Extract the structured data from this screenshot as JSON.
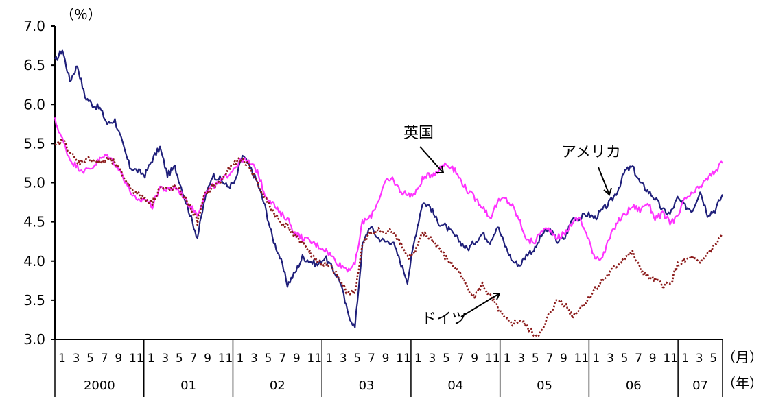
{
  "chart_data": {
    "type": "line",
    "y_unit": "（％）",
    "x_month_unit": "（月）",
    "x_year_unit": "（年）",
    "ylim": [
      3.0,
      7.0
    ],
    "y_ticks": [
      "3.0",
      "3.5",
      "4.0",
      "4.5",
      "5.0",
      "5.5",
      "6.0",
      "6.5",
      "7.0"
    ],
    "y_tick_values": [
      3.0,
      3.5,
      4.0,
      4.5,
      5.0,
      5.5,
      6.0,
      6.5,
      7.0
    ],
    "month_labels": [
      "1",
      "3",
      "5",
      "7",
      "9",
      "11"
    ],
    "last_month_labels": [
      "1",
      "3",
      "5"
    ],
    "years": [
      "2000",
      "01",
      "02",
      "03",
      "04",
      "05",
      "06",
      "07"
    ],
    "x_range_months": [
      0,
      89
    ],
    "grid": false,
    "colors": {
      "usa": "#1f1f7a",
      "uk": "#ff33ff",
      "germany": "#8b1a1a",
      "axis": "#000000"
    },
    "annotations": {
      "uk": "英国",
      "usa": "アメリカ",
      "germany": "ドイツ"
    },
    "series": [
      {
        "name": "アメリカ",
        "key": "usa",
        "style": "solid",
        "x": [
          0,
          1,
          2,
          3,
          4,
          5,
          6,
          7,
          8,
          9,
          10,
          11,
          12,
          13,
          14,
          15,
          16,
          17,
          18,
          19,
          20,
          21,
          22,
          23,
          24,
          25,
          26,
          27,
          28,
          29,
          30,
          31,
          32,
          33,
          34,
          35,
          36,
          37,
          38,
          39,
          40,
          41,
          42,
          43,
          44,
          45,
          46,
          47,
          48,
          49,
          50,
          51,
          52,
          53,
          54,
          55,
          56,
          57,
          58,
          59,
          60,
          61,
          62,
          63,
          64,
          65,
          66,
          67,
          68,
          69,
          70,
          71,
          72,
          73,
          74,
          75,
          76,
          77,
          78,
          79,
          80,
          81,
          82,
          83,
          84,
          85,
          86,
          87,
          88,
          89
        ],
        "y": [
          6.55,
          6.7,
          6.3,
          6.5,
          6.1,
          6.0,
          5.95,
          5.75,
          5.8,
          5.5,
          5.2,
          5.15,
          5.1,
          5.3,
          5.45,
          5.1,
          5.2,
          4.9,
          4.6,
          4.3,
          4.8,
          5.1,
          5.05,
          4.95,
          5.0,
          5.35,
          5.2,
          5.0,
          4.7,
          4.3,
          4.05,
          3.7,
          3.85,
          4.05,
          4.0,
          3.95,
          4.05,
          3.9,
          3.75,
          3.35,
          3.15,
          4.2,
          4.45,
          4.3,
          4.25,
          4.25,
          4.0,
          3.75,
          4.3,
          4.75,
          4.7,
          4.5,
          4.45,
          4.35,
          4.25,
          4.15,
          4.25,
          4.35,
          4.25,
          4.45,
          4.2,
          4.0,
          3.95,
          4.1,
          4.15,
          4.35,
          4.4,
          4.25,
          4.3,
          4.55,
          4.55,
          4.6,
          4.55,
          4.65,
          4.75,
          4.9,
          5.15,
          5.2,
          5.0,
          4.9,
          4.8,
          4.65,
          4.6,
          4.8,
          4.7,
          4.65,
          4.9,
          4.6,
          4.65,
          4.85
        ]
      },
      {
        "name": "英国",
        "key": "uk",
        "style": "solid",
        "x": [
          0,
          1,
          2,
          3,
          4,
          5,
          6,
          7,
          8,
          9,
          10,
          11,
          12,
          13,
          14,
          15,
          16,
          17,
          18,
          19,
          20,
          21,
          22,
          23,
          24,
          25,
          26,
          27,
          28,
          29,
          30,
          31,
          32,
          33,
          34,
          35,
          36,
          37,
          38,
          39,
          40,
          41,
          42,
          43,
          44,
          45,
          46,
          47,
          48,
          49,
          50,
          51,
          52,
          53,
          54,
          55,
          56,
          57,
          58,
          59,
          60,
          61,
          62,
          63,
          64,
          65,
          66,
          67,
          68,
          69,
          70,
          71,
          72,
          73,
          74,
          75,
          76,
          77,
          78,
          79,
          80,
          81,
          82,
          83,
          84,
          85,
          86,
          87,
          88,
          89
        ],
        "y": [
          5.8,
          5.55,
          5.3,
          5.2,
          5.15,
          5.2,
          5.3,
          5.35,
          5.25,
          5.1,
          4.9,
          4.75,
          4.8,
          4.7,
          4.95,
          4.9,
          4.95,
          4.85,
          4.7,
          4.6,
          4.85,
          4.95,
          5.0,
          5.1,
          5.2,
          5.3,
          5.25,
          5.15,
          4.85,
          4.75,
          4.6,
          4.55,
          4.35,
          4.3,
          4.25,
          4.2,
          4.15,
          4.05,
          3.95,
          3.9,
          3.95,
          4.5,
          4.55,
          4.75,
          5.0,
          5.05,
          4.9,
          4.85,
          4.85,
          5.05,
          5.1,
          5.15,
          5.25,
          5.2,
          5.05,
          4.9,
          4.8,
          4.7,
          4.55,
          4.75,
          4.8,
          4.7,
          4.5,
          4.25,
          4.25,
          4.4,
          4.4,
          4.3,
          4.35,
          4.5,
          4.55,
          4.3,
          4.05,
          4.05,
          4.3,
          4.5,
          4.6,
          4.7,
          4.65,
          4.75,
          4.55,
          4.6,
          4.5,
          4.55,
          4.8,
          4.85,
          4.95,
          5.05,
          5.15,
          5.25
        ]
      },
      {
        "name": "ドイツ",
        "key": "germany",
        "style": "dotted",
        "x": [
          0,
          1,
          2,
          3,
          4,
          5,
          6,
          7,
          8,
          9,
          10,
          11,
          12,
          13,
          14,
          15,
          16,
          17,
          18,
          19,
          20,
          21,
          22,
          23,
          24,
          25,
          26,
          27,
          28,
          29,
          30,
          31,
          32,
          33,
          34,
          35,
          36,
          37,
          38,
          39,
          40,
          41,
          42,
          43,
          44,
          45,
          46,
          47,
          48,
          49,
          50,
          51,
          52,
          53,
          54,
          55,
          56,
          57,
          58,
          59,
          60,
          61,
          62,
          63,
          64,
          65,
          66,
          67,
          68,
          69,
          70,
          71,
          72,
          73,
          74,
          75,
          76,
          77,
          78,
          79,
          80,
          81,
          82,
          83,
          84,
          85,
          86,
          87,
          88,
          89
        ],
        "y": [
          5.45,
          5.55,
          5.4,
          5.25,
          5.3,
          5.3,
          5.25,
          5.3,
          5.25,
          5.1,
          4.95,
          4.85,
          4.8,
          4.75,
          4.95,
          4.9,
          4.95,
          4.85,
          4.7,
          4.5,
          4.85,
          4.95,
          5.0,
          5.15,
          5.25,
          5.3,
          5.2,
          5.0,
          4.8,
          4.65,
          4.5,
          4.45,
          4.3,
          4.25,
          4.1,
          4.0,
          3.95,
          3.9,
          3.75,
          3.6,
          3.6,
          4.2,
          4.35,
          4.4,
          4.35,
          4.4,
          4.25,
          4.05,
          4.1,
          4.35,
          4.3,
          4.2,
          4.05,
          3.95,
          3.85,
          3.65,
          3.55,
          3.7,
          3.55,
          3.4,
          3.25,
          3.2,
          3.25,
          3.15,
          3.05,
          3.1,
          3.35,
          3.5,
          3.45,
          3.3,
          3.4,
          3.5,
          3.65,
          3.75,
          3.85,
          3.95,
          4.05,
          4.1,
          3.9,
          3.8,
          3.75,
          3.7,
          3.7,
          3.95,
          4.0,
          4.05,
          3.95,
          4.1,
          4.2,
          4.35
        ]
      }
    ]
  }
}
